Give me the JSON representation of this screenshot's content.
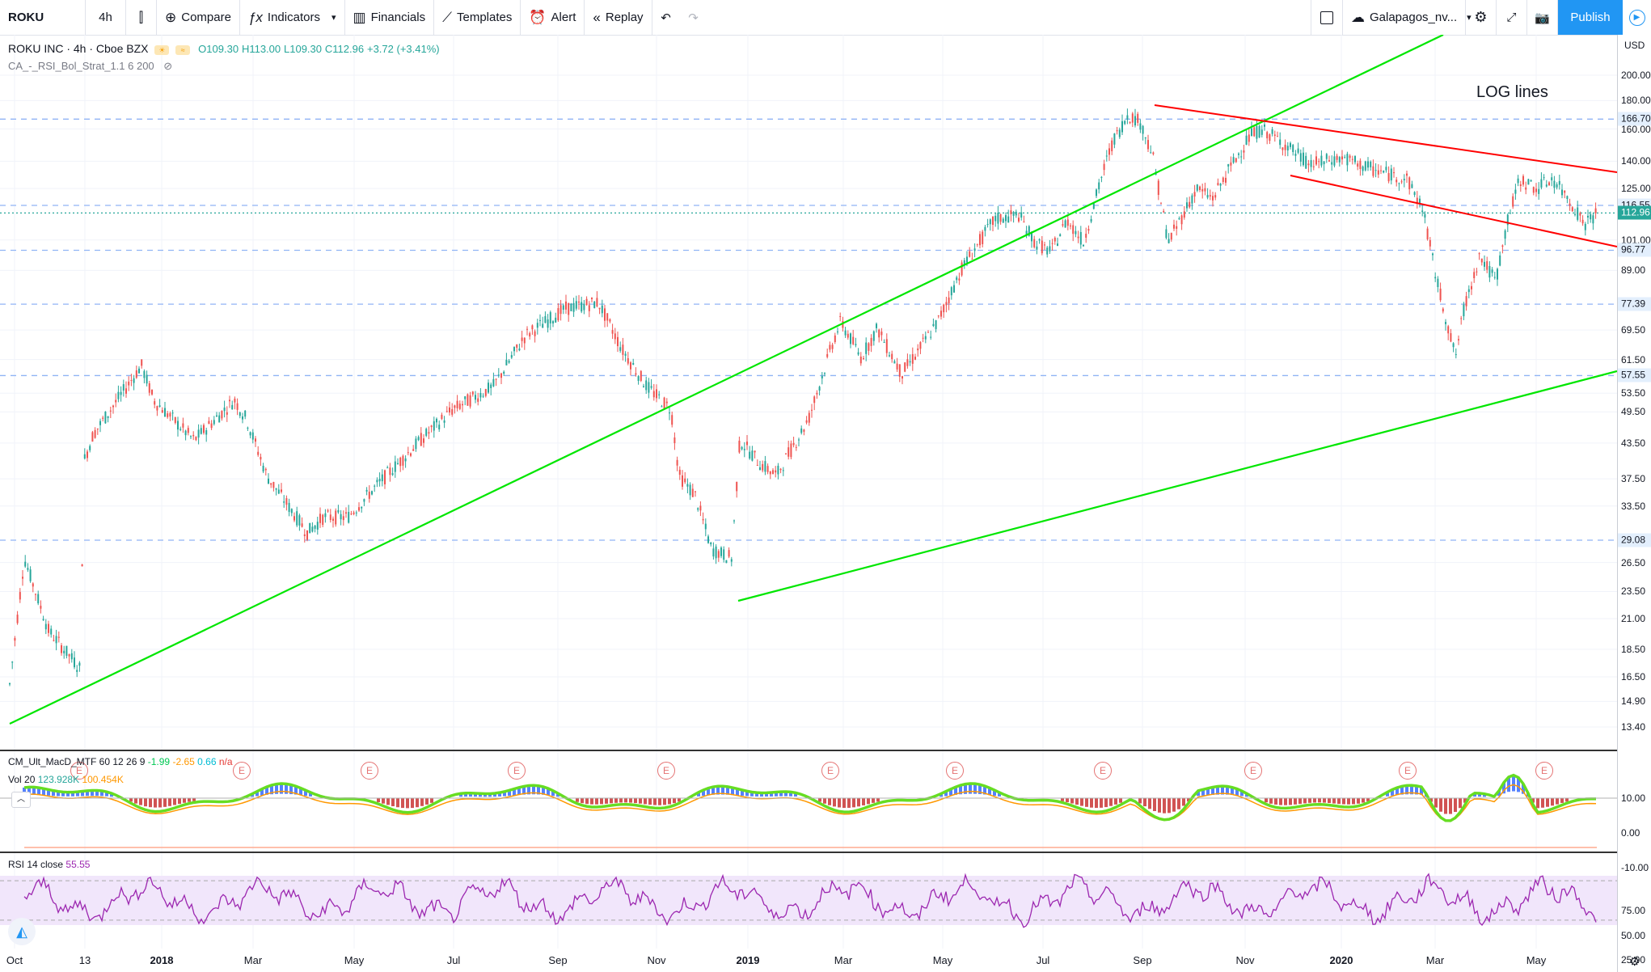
{
  "toolbar": {
    "symbol": "ROKU",
    "interval": "4h",
    "compare": "Compare",
    "indicators": "Indicators",
    "financials": "Financials",
    "templates": "Templates",
    "alert": "Alert",
    "replay": "Replay",
    "layout_name": "Galapagos_nv...",
    "publish": "Publish"
  },
  "legend": {
    "title": "ROKU INC · 4h · Cboe BZX",
    "open": "O109.30",
    "high": "H113.00",
    "low": "L109.30",
    "close": "C112.96",
    "change": "+3.72 (+3.41%)",
    "strategy": "CA_-_RSI_Bol_Strat_1.1 6 200"
  },
  "annotation": "LOG lines",
  "price_axis": {
    "currency": "USD",
    "ticks": [
      "200.00",
      "180.00",
      "160.00",
      "140.00",
      "125.00",
      "101.00",
      "89.00",
      "69.50",
      "61.50",
      "53.50",
      "49.50",
      "43.50",
      "37.50",
      "33.50",
      "26.50",
      "23.50",
      "21.00",
      "18.50",
      "16.50",
      "14.90",
      "13.40"
    ],
    "badges": [
      {
        "value": "166.70",
        "kind": "level"
      },
      {
        "value": "116.55",
        "kind": "level"
      },
      {
        "value": "112.96",
        "kind": "last"
      },
      {
        "value": "96.77",
        "kind": "level"
      },
      {
        "value": "77.39",
        "kind": "level"
      },
      {
        "value": "57.55",
        "kind": "level"
      },
      {
        "value": "29.08",
        "kind": "level"
      }
    ]
  },
  "macd": {
    "title": "CM_Ult_MacD_MTF 60 12 26 9",
    "v1": "-1.99",
    "v2": "-2.65",
    "v3": "0.66",
    "v4": "n/a",
    "vol_title": "Vol 20",
    "vol_v1": "123.928K",
    "vol_v2": "100.454K",
    "ticks": [
      "10.00",
      "0.00",
      "-10.00"
    ]
  },
  "rsi": {
    "title": "RSI 14 close",
    "value": "55.55",
    "ticks": [
      "75.00",
      "50.00",
      "25.00"
    ]
  },
  "time_axis": [
    "Oct",
    "13",
    "2018",
    "Mar",
    "May",
    "Jul",
    "Sep",
    "Nov",
    "2019",
    "Mar",
    "May",
    "Jul",
    "Sep",
    "Nov",
    "2020",
    "Mar",
    "May"
  ],
  "earnings_marker": "E",
  "colors": {
    "trend_up": "#00e600",
    "trend_down": "#ff0000",
    "badge": "#e3effd",
    "last": "#26a69a",
    "rsi": "#9c27b0",
    "rsi_band": "#f1e6fb"
  }
}
